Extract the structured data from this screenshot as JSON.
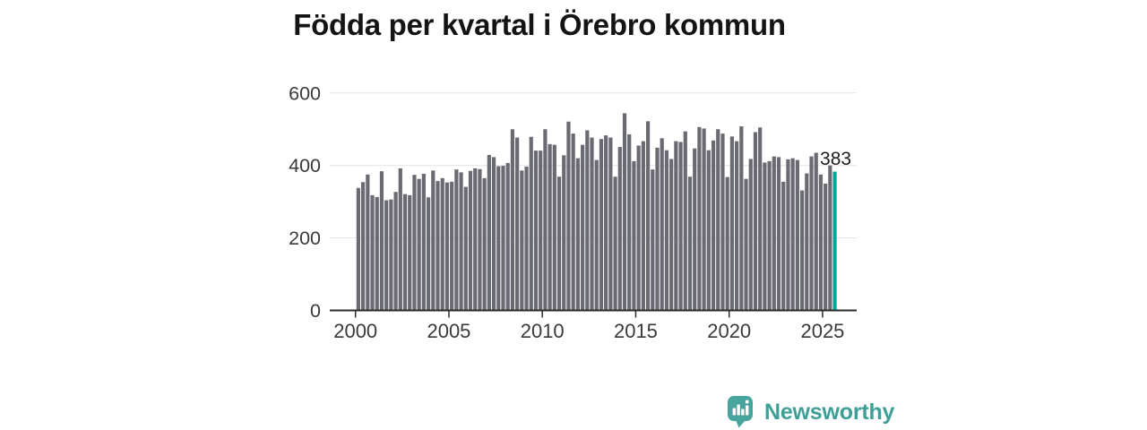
{
  "title": "Födda per kvartal i Örebro kommun",
  "chart_data": {
    "type": "bar",
    "title": "Födda per kvartal i Örebro kommun",
    "x_description": "Kvartal, 2000 K1 till 2025 K3",
    "x_start": "2000-Q1",
    "x_end": "2025-Q3",
    "values": [
      338,
      354,
      375,
      318,
      313,
      384,
      304,
      306,
      327,
      392,
      321,
      318,
      374,
      363,
      377,
      312,
      386,
      357,
      365,
      353,
      355,
      389,
      381,
      341,
      385,
      392,
      390,
      365,
      429,
      423,
      398,
      399,
      407,
      500,
      477,
      386,
      397,
      479,
      441,
      441,
      500,
      459,
      457,
      369,
      428,
      521,
      488,
      420,
      457,
      497,
      477,
      415,
      473,
      483,
      477,
      369,
      451,
      544,
      486,
      412,
      455,
      467,
      522,
      389,
      449,
      475,
      442,
      418,
      467,
      465,
      494,
      369,
      447,
      506,
      502,
      442,
      469,
      500,
      488,
      368,
      480,
      467,
      508,
      363,
      418,
      492,
      505,
      408,
      412,
      425,
      423,
      355,
      417,
      420,
      415,
      331,
      378,
      425,
      435,
      375,
      350,
      400,
      383
    ],
    "ylim": [
      0,
      600
    ],
    "yticks": [
      0,
      200,
      400,
      600
    ],
    "ytick_labels": [
      "0",
      "200",
      "400",
      "600"
    ],
    "xtick_labels": [
      "2000",
      "2005",
      "2010",
      "2015",
      "2020",
      "2025"
    ],
    "grid": "horizontal",
    "bar_color": "#6a6a72",
    "grid_color": "#e3e3e3",
    "axis_color": "#2b2b2b",
    "axis_text_color": "#3a3a3a",
    "highlight": {
      "index": 102,
      "color": "#00a79b",
      "label": "383"
    }
  },
  "branding": {
    "logo_text": "Newsworthy",
    "logo_color": "#3f9e96",
    "logo_icon": "speech-bubble-bar-chart"
  }
}
